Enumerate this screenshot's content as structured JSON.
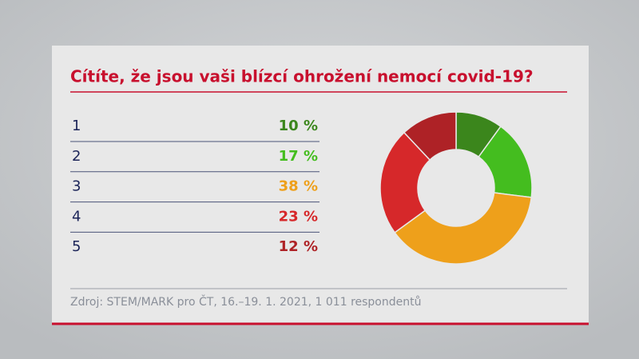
{
  "chart_data": {
    "type": "donut",
    "title": "Cítíte, že jsou vaši blízcí ohrožení nemocí covid-19?",
    "categories": [
      "1",
      "2",
      "3",
      "4",
      "5"
    ],
    "values": [
      10,
      17,
      38,
      23,
      12
    ],
    "value_labels": [
      "10 %",
      "17 %",
      "38 %",
      "23 %",
      "12 %"
    ],
    "colors": [
      "#3b861c",
      "#44bd1f",
      "#eea01b",
      "#d6282a",
      "#ae2226"
    ],
    "source": "Zdroj: STEM/MARK pro ČT, 16.–19. 1. 2021, 1 011 respondentů"
  }
}
